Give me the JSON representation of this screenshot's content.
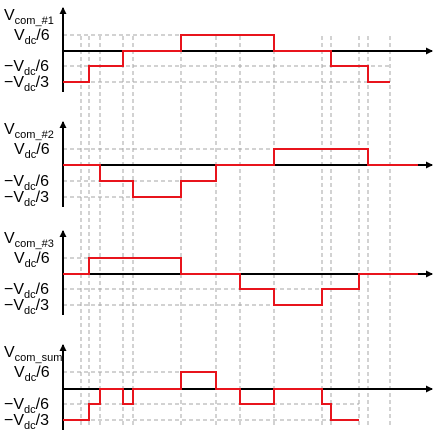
{
  "colors": {
    "waveform": "#e8141c",
    "axis": "#000000",
    "guide": "#a6a6a6"
  },
  "panels": [
    {
      "id": "com1",
      "title": {
        "main": "V",
        "sub": "com_#1"
      },
      "levels": [
        {
          "prefix": "V",
          "sub": "dc",
          "suffix": "/6"
        },
        {
          "prefix": "−V",
          "sub": "dc",
          "suffix": "/6"
        },
        {
          "prefix": "−V",
          "sub": "dc",
          "suffix": "/3"
        }
      ],
      "waveform_levels": [
        -2,
        -1,
        0,
        1,
        0,
        -1,
        -2
      ]
    },
    {
      "id": "com2",
      "title": {
        "main": "V",
        "sub": "com_#2"
      },
      "levels": [
        {
          "prefix": "V",
          "sub": "dc",
          "suffix": "/6"
        },
        {
          "prefix": "−V",
          "sub": "dc",
          "suffix": "/6"
        },
        {
          "prefix": "−V",
          "sub": "dc",
          "suffix": "/3"
        }
      ],
      "waveform_levels": [
        0,
        -1,
        -2,
        -1,
        0,
        1,
        0
      ]
    },
    {
      "id": "com3",
      "title": {
        "main": "V",
        "sub": "com_#3"
      },
      "levels": [
        {
          "prefix": "V",
          "sub": "dc",
          "suffix": "/6"
        },
        {
          "prefix": "−V",
          "sub": "dc",
          "suffix": "/6"
        },
        {
          "prefix": "−V",
          "sub": "dc",
          "suffix": "/3"
        }
      ],
      "waveform_levels": [
        0,
        1,
        0,
        -1,
        -2,
        -1,
        0
      ]
    },
    {
      "id": "comsum",
      "title": {
        "main": "V",
        "sub": "com_sum"
      },
      "levels": [
        {
          "prefix": "V",
          "sub": "dc",
          "suffix": "/6"
        },
        {
          "prefix": "−V",
          "sub": "dc",
          "suffix": "/6"
        },
        {
          "prefix": "−V",
          "sub": "dc",
          "suffix": "/3"
        }
      ],
      "waveform_levels": [
        -2,
        -1,
        0,
        -1,
        0,
        1,
        0,
        -1,
        0,
        -1,
        -2
      ]
    }
  ]
}
